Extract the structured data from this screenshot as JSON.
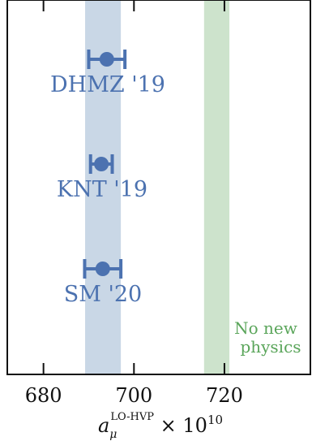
{
  "chart_data": {
    "type": "errorbar",
    "title": "",
    "xlabel": {
      "base": "a",
      "subscript": "μ",
      "superscript": "LO-HVP",
      "suffix": " × 10",
      "exponent": "10"
    },
    "ylabel": "",
    "xlim": [
      672,
      739
    ],
    "xticks": [
      680,
      700,
      720
    ],
    "grid": false,
    "points": [
      {
        "label": "DHMZ '19",
        "value": 694.0,
        "err_low": 4.0,
        "err_high": 4.0,
        "color": "#4c72b0"
      },
      {
        "label": "KNT '19",
        "value": 692.8,
        "err_low": 2.4,
        "err_high": 2.4,
        "color": "#4c72b0"
      },
      {
        "label": "SM '20",
        "value": 693.1,
        "err_low": 4.0,
        "err_high": 4.0,
        "color": "#4c72b0"
      }
    ],
    "bands": [
      {
        "name": "sm-band",
        "xmin": 689.2,
        "xmax": 697.1,
        "color": "#c9d7e6",
        "label": ""
      },
      {
        "name": "no-new-physics-band",
        "xmin": 715.5,
        "xmax": 721.1,
        "color": "#cde3cc",
        "label": "No new physics",
        "label_color": "#5aa55a"
      }
    ]
  }
}
